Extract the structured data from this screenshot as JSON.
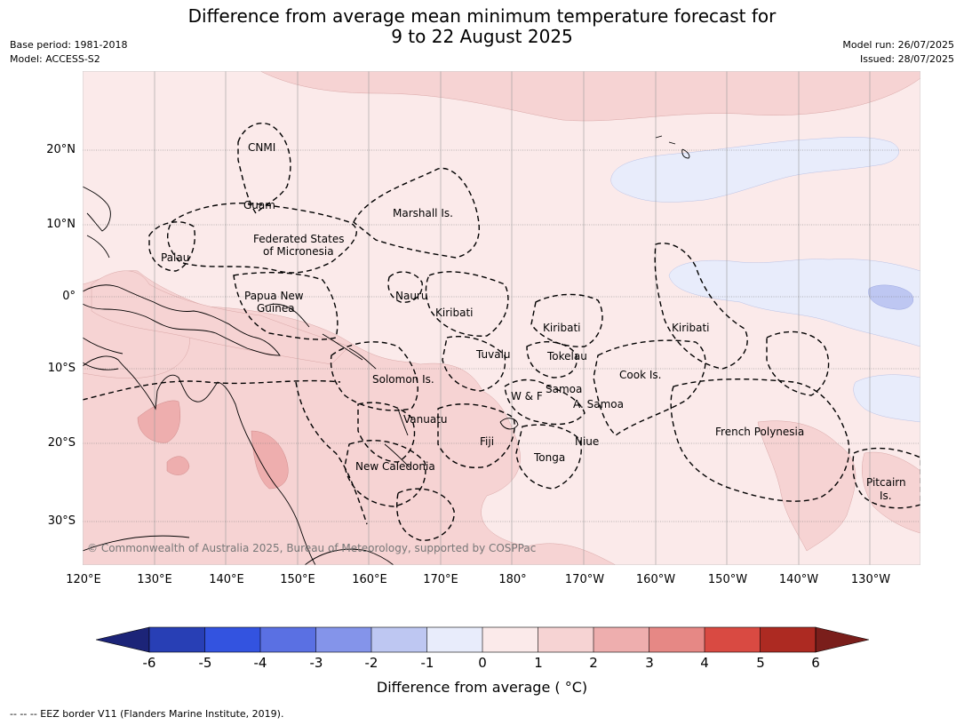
{
  "title_line1": "Difference from average mean minimum temperature forecast for",
  "title_line2": "9 to 22 August 2025",
  "base_period": "Base period: 1981-2018",
  "model": "Model: ACCESS-S2",
  "model_run": "Model run: 26/07/2025",
  "issued": "Issued: 28/07/2025",
  "lat_labels": [
    "20°N",
    "10°N",
    "0°",
    "10°S",
    "20°S",
    "30°S"
  ],
  "lon_labels": [
    "120°E",
    "130°E",
    "140°E",
    "150°E",
    "160°E",
    "170°E",
    "180°",
    "170°W",
    "160°W",
    "150°W",
    "140°W",
    "130°W"
  ],
  "regions": {
    "cnmi": "CNMI",
    "guam": "Guam",
    "marshall": "Marshall Is.",
    "fsm1": "Federated States",
    "fsm2": "of Micronesia",
    "palau": "Palau",
    "png1": "Papua New",
    "png2": "Guinea",
    "nauru": "Nauru",
    "kiribati_w": "Kiribati",
    "kiribati_c": "Kiribati",
    "kiribati_e": "Kiribati",
    "tuvalu": "Tuvalu",
    "tokelau": "Tokelau",
    "cook": "Cook Is.",
    "solomon": "Solomon Is.",
    "wf": "W & F",
    "samoa": "Samoa",
    "asamoa": "A. Samoa",
    "vanuatu": "Vanuatu",
    "fiji": "Fiji",
    "niue": "Niue",
    "tonga": "Tonga",
    "fpoly": "French Polynesia",
    "newcal": "New Caledonia",
    "pitcairn1": "Pitcairn",
    "pitcairn2": "Is."
  },
  "copyright": "© Commonwealth of Australia 2025, Bureau of Meteorology, supported by COSPPac",
  "colorbar": {
    "ticks": [
      "-6",
      "-5",
      "-4",
      "-3",
      "-2",
      "-1",
      "0",
      "1",
      "2",
      "3",
      "4",
      "5",
      "6"
    ],
    "colors": [
      "#1c2478",
      "#283fb5",
      "#3353e0",
      "#5a70e3",
      "#8494ea",
      "#bec7f2",
      "#e8ecfb",
      "#fbeaea",
      "#f6d3d3",
      "#eeaeae",
      "#e68885",
      "#d94a42",
      "#ad2a22",
      "#7a1e1b"
    ],
    "title": "Difference from average ( °C)"
  },
  "footnote": "-- -- -- EEZ border V11 (Flanders Marine Institute, 2019)."
}
